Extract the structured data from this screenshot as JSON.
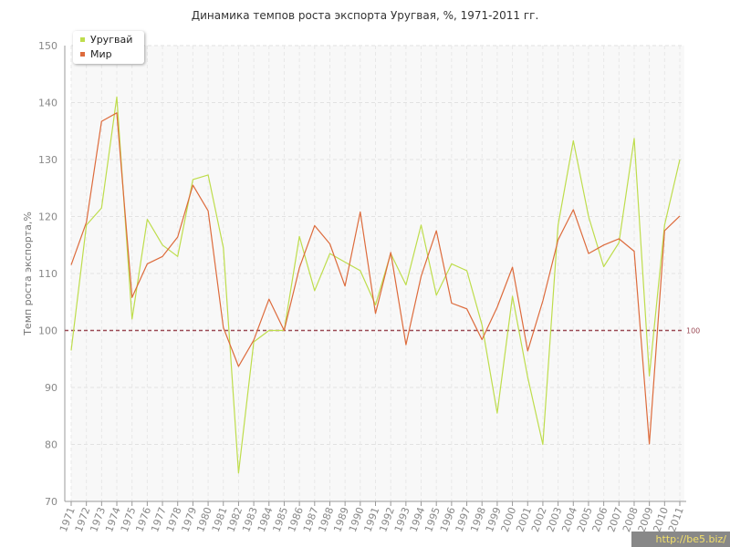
{
  "title": "Динамика темпов роста экспорта Уругвая, %, 1971-2011 гг.",
  "watermark": "http://be5.biz/",
  "legend": [
    {
      "name": "Уругвай",
      "color": "#bedd4c"
    },
    {
      "name": "Мир",
      "color": "#dd6b3c"
    }
  ],
  "reference_line_label": "100",
  "chart_data": {
    "type": "line",
    "title": "Динамика темпов роста экспорта Уругвая, %, 1971-2011 гг.",
    "xlabel": "",
    "ylabel": "Темп роста экспорта,%",
    "ylim": [
      70,
      150
    ],
    "yticks": [
      70,
      80,
      90,
      100,
      110,
      120,
      130,
      140,
      150
    ],
    "grid": true,
    "legend_position": "top-left",
    "reference_line": 100,
    "categories": [
      "1971",
      "1972",
      "1973",
      "1974",
      "1975",
      "1976",
      "1977",
      "1978",
      "1979",
      "1980",
      "1981",
      "1982",
      "1983",
      "1984",
      "1985",
      "1986",
      "1987",
      "1988",
      "1989",
      "1990",
      "1991",
      "1992",
      "1993",
      "1994",
      "1995",
      "1996",
      "1997",
      "1998",
      "1999",
      "2000",
      "2001",
      "2002",
      "2003",
      "2004",
      "2005",
      "2006",
      "2007",
      "2008",
      "2009",
      "2010",
      "2011"
    ],
    "series": [
      {
        "name": "Уругвай",
        "color": "#bedd4c",
        "values": [
          96.5,
          118.5,
          121.5,
          141,
          102,
          119.5,
          115,
          113,
          126.5,
          127.3,
          114.5,
          75,
          98,
          100,
          100,
          116.5,
          107,
          113.5,
          112,
          110.5,
          104.5,
          113.5,
          108,
          118.5,
          106.2,
          111.7,
          110.5,
          101,
          85.5,
          106,
          91.8,
          80,
          118.5,
          133.3,
          120,
          111.2,
          115.4,
          133.7,
          92,
          118.5,
          130
        ]
      },
      {
        "name": "Мир",
        "color": "#dd6b3c",
        "values": [
          111.5,
          119,
          136.7,
          138.2,
          105.8,
          111.7,
          113,
          116.4,
          125.5,
          121,
          100.5,
          93.7,
          98.3,
          105.5,
          100,
          111,
          118.4,
          115.2,
          107.8,
          120.8,
          103,
          113.7,
          97.5,
          109.5,
          117.5,
          104.8,
          103.8,
          98.4,
          104.1,
          111.1,
          96.4,
          105.2,
          115.9,
          121.2,
          113.5,
          115,
          116.1,
          113.9,
          80.1,
          117.5,
          120.1
        ]
      }
    ]
  }
}
